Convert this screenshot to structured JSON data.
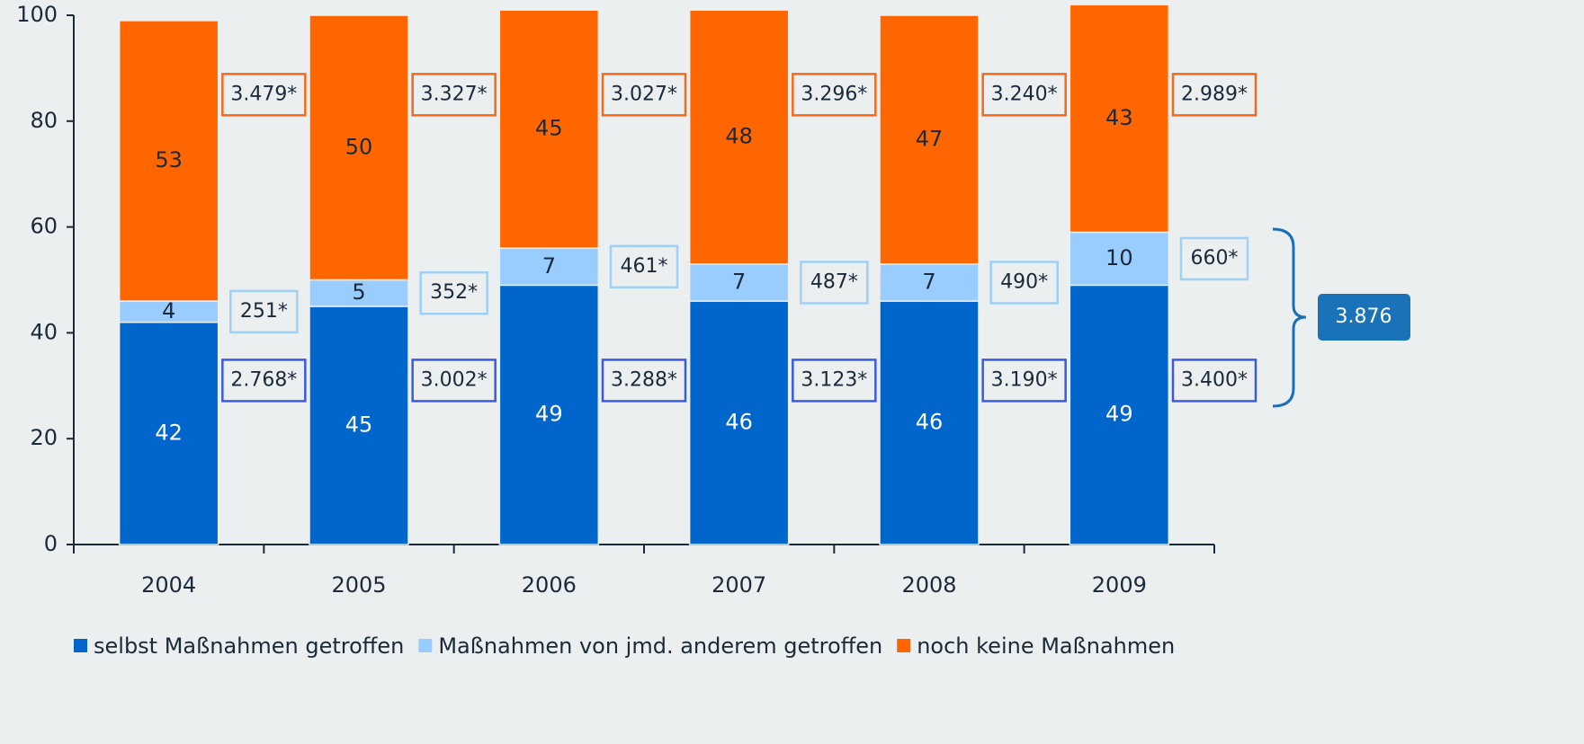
{
  "chart_data": {
    "type": "bar",
    "stacked": true,
    "categories": [
      "2004",
      "2005",
      "2006",
      "2007",
      "2008",
      "2009"
    ],
    "series": [
      {
        "name": "selbst Maßnahmen getroffen",
        "color": "#0066cc",
        "label_color": "#ffffff",
        "box_color": "#3a5be0",
        "values": [
          42,
          45,
          49,
          46,
          46,
          49
        ],
        "counts": [
          "2.768*",
          "3.002*",
          "3.288*",
          "3.123*",
          "3.190*",
          "3.400*"
        ]
      },
      {
        "name": "Maßnahmen von jmd. anderem getroffen",
        "color": "#99ccff",
        "label_color": "#1b2a3a",
        "box_color": "#9fd0f5",
        "values": [
          4,
          5,
          7,
          7,
          7,
          10
        ],
        "counts": [
          "251*",
          "352*",
          "461*",
          "487*",
          "490*",
          "660*"
        ]
      },
      {
        "name": "noch keine Maßnahmen",
        "color": "#ff6600",
        "label_color": "#1b2a3a",
        "box_color": "#f26a1b",
        "values": [
          53,
          50,
          45,
          48,
          47,
          43
        ],
        "counts": [
          "3.479*",
          "3.327*",
          "3.027*",
          "3.296*",
          "3.240*",
          "2.989*"
        ]
      }
    ],
    "annotation": "3.876",
    "ylim": [
      0,
      100
    ],
    "yticks": [
      0,
      20,
      40,
      60,
      80,
      100
    ],
    "grid": false,
    "legend": "bottom"
  }
}
